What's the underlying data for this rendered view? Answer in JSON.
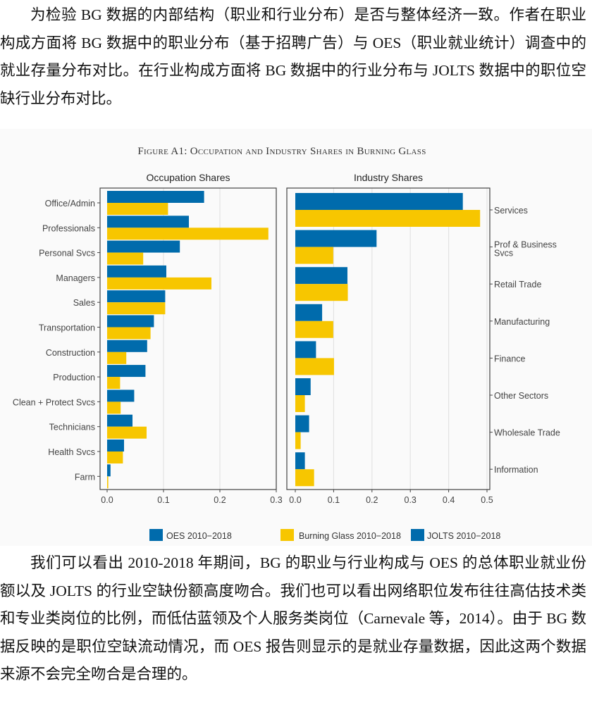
{
  "paragraphs": [
    "为检验 BG 数据的内部结构（职业和行业分布）是否与整体经济一致。作者在职业构成方面将 BG 数据中的职业分布（基于招聘广告）与 OES（职业就业统计）调查中的就业存量分布对比。在行业构成方面将 BG 数据中的行业分布与 JOLTS 数据中的职位空缺行业分布对比。",
    "我们可以看出 2010-2018 年期间，BG 的职业与行业构成与 OES 的总体职业就业份额以及 JOLTS 的行业空缺份额高度吻合。我们也可以看出网络职位发布往往高估技术类和专业类岗位的比例，而低估蓝领及个人服务类岗位（Carnevale 等，2014）。由于 BG 数据反映的是职位空缺流动情况，而 OES 报告则显示的是就业存量数据，因此这两个数据来源不会完全吻合是合理的。"
  ],
  "figure": {
    "title": "Figure A1: Occupation and Industry Shares in Burning Glass",
    "legend": [
      {
        "label": "OES 2010−2018",
        "color": "#006bac"
      },
      {
        "label": "Burning Glass 2010−2018",
        "color": "#f7c600"
      },
      {
        "label": "JOLTS 2010−2018",
        "color": "#006bac"
      }
    ]
  },
  "chart_data": [
    {
      "type": "bar",
      "orientation": "horizontal",
      "title": "Occupation Shares",
      "categories": [
        "Office/Admin",
        "Professionals",
        "Personal Svcs",
        "Managers",
        "Sales",
        "Transportation",
        "Construction",
        "Production",
        "Clean + Protect Svcs",
        "Technicians",
        "Health Svcs",
        "Farm"
      ],
      "series": [
        {
          "name": "OES 2010−2018",
          "color": "#006bac",
          "values": [
            0.172,
            0.145,
            0.129,
            0.105,
            0.103,
            0.083,
            0.071,
            0.068,
            0.048,
            0.045,
            0.03,
            0.006
          ]
        },
        {
          "name": "Burning Glass 2010−2018",
          "color": "#f7c600",
          "values": [
            0.108,
            0.286,
            0.064,
            0.185,
            0.103,
            0.077,
            0.034,
            0.023,
            0.024,
            0.07,
            0.028,
            0.002
          ]
        }
      ],
      "xlim": [
        0,
        0.3
      ],
      "xticks": [
        "0.0",
        "0.1",
        "0.2",
        "0.3"
      ],
      "grid": true,
      "axis_side": "left"
    },
    {
      "type": "bar",
      "orientation": "horizontal",
      "title": "Industry Shares",
      "categories": [
        "Services",
        "Prof & Business Svcs",
        "Retail Trade",
        "Manufacturing",
        "Finance",
        "Other Sectors",
        "Wholesale Trade",
        "Information"
      ],
      "series": [
        {
          "name": "JOLTS 2010−2018",
          "color": "#006bac",
          "values": [
            0.437,
            0.212,
            0.136,
            0.07,
            0.054,
            0.04,
            0.036,
            0.025
          ]
        },
        {
          "name": "Burning Glass 2010−2018",
          "color": "#f7c600",
          "values": [
            0.482,
            0.099,
            0.137,
            0.099,
            0.101,
            0.025,
            0.014,
            0.049
          ]
        }
      ],
      "xlim": [
        0,
        0.5
      ],
      "xticks": [
        "0.0",
        "0.1",
        "0.2",
        "0.3",
        "0.4",
        "0.5"
      ],
      "grid": true,
      "axis_side": "right"
    }
  ]
}
